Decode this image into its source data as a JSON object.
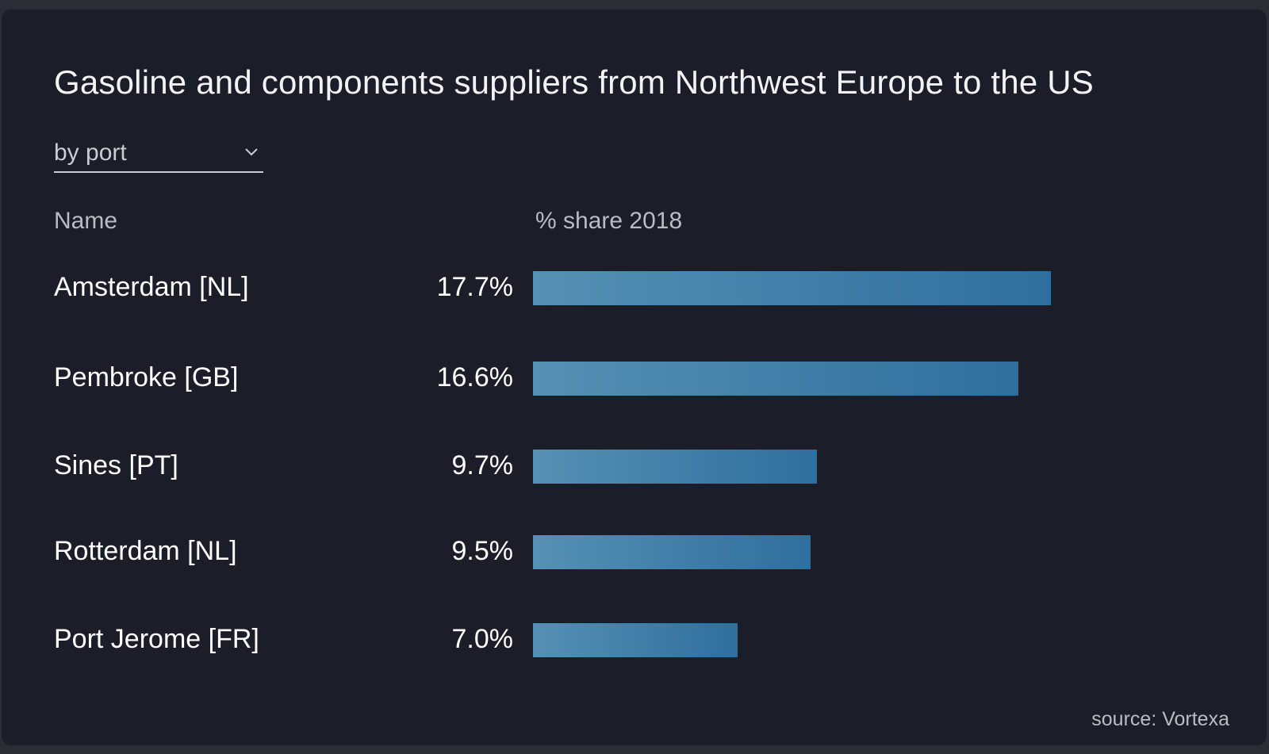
{
  "header": {
    "title": "Gasoline and components suppliers from Northwest Europe to the US"
  },
  "filter": {
    "selected": "by port",
    "icon": "chevron-down-icon"
  },
  "columns": {
    "name": "Name",
    "share": "% share 2018"
  },
  "footer": {
    "source": "source: Vortexa"
  },
  "colors": {
    "background": "#1b1e28",
    "bar_start": "#5690b4",
    "bar_end": "#2f6f9e"
  },
  "chart_data": {
    "type": "bar",
    "orientation": "horizontal",
    "title": "Gasoline and components suppliers from Northwest Europe to the US",
    "categories": [
      "Amsterdam [NL]",
      "Pembroke [GB]",
      "Sines [PT]",
      "Rotterdam [NL]",
      "Port Jerome [FR]"
    ],
    "values": [
      17.7,
      16.6,
      9.7,
      9.5,
      7.0
    ],
    "value_labels": [
      "17.7%",
      "16.6%",
      "9.7%",
      "9.5%",
      "7.0%"
    ],
    "xlabel": "% share 2018",
    "ylabel": "Name",
    "grid": false,
    "legend": "none"
  }
}
